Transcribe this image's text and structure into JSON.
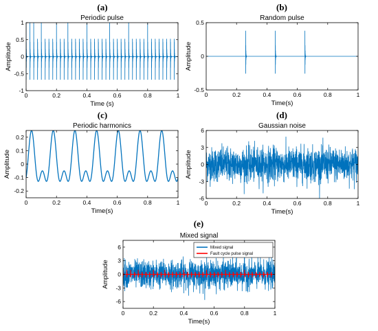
{
  "colors": {
    "signal": "#0072BD",
    "fault": "#FF0000",
    "axis": "#000000"
  },
  "chart_data": [
    {
      "id": "a",
      "panel_label": "(a)",
      "type": "line",
      "title": "Periodic pulse",
      "xlabel": "Time (s)",
      "ylabel": "Amplitude",
      "xlim": [
        0,
        1
      ],
      "ylim": [
        -1,
        1
      ],
      "xticks": [
        0,
        0.2,
        0.4,
        0.6,
        0.8,
        1
      ],
      "xtick_labels": [
        "0",
        "0.2",
        "0.4",
        "0.6",
        "0.8",
        "1"
      ],
      "yticks": [
        -1,
        -0.5,
        0,
        0.5,
        1
      ],
      "ytick_labels": [
        "-1",
        "-0.5",
        "0",
        "0.5",
        "1"
      ],
      "signal": {
        "kind": "periodic_pulse",
        "period_s": 0.025,
        "amplitude": 1
      }
    },
    {
      "id": "b",
      "panel_label": "(b)",
      "type": "line",
      "title": "Random pulse",
      "xlabel": "Time(s)",
      "ylabel": "Amplitude",
      "xlim": [
        0,
        1
      ],
      "ylim": [
        -0.5,
        0.5
      ],
      "xticks": [
        0,
        0.2,
        0.4,
        0.6,
        0.8,
        1
      ],
      "xtick_labels": [
        "0",
        "0.2",
        "0.4",
        "0.6",
        "0.8",
        "1"
      ],
      "yticks": [
        -0.5,
        0,
        0.5
      ],
      "ytick_labels": [
        "-0.5",
        "0",
        "0.5"
      ],
      "signal": {
        "kind": "random_pulse",
        "pulse_times_s": [
          0.26,
          0.455,
          0.65
        ],
        "amplitude": 0.38
      }
    },
    {
      "id": "c",
      "panel_label": "(c)",
      "type": "line",
      "title": "Periodic harmonics",
      "xlabel": "Time(s)",
      "ylabel": "Amplitude",
      "xlim": [
        0,
        1
      ],
      "ylim": [
        -0.25,
        0.25
      ],
      "xticks": [
        0,
        0.2,
        0.4,
        0.6,
        0.8,
        1
      ],
      "xtick_labels": [
        "0",
        "0.2",
        "0.4",
        "0.6",
        "0.8",
        "1"
      ],
      "yticks": [
        -0.2,
        -0.1,
        0,
        0.1,
        0.2
      ],
      "ytick_labels": [
        "-0.2",
        "-0.1",
        "0",
        "0.1",
        "0.2"
      ],
      "signal": {
        "kind": "harmonics",
        "fundamental_hz": 7,
        "amplitudes": [
          0.15,
          0.1
        ]
      }
    },
    {
      "id": "d",
      "panel_label": "(d)",
      "type": "line",
      "title": "Gaussian noise",
      "xlabel": "Time(s)",
      "ylabel": "Amplitude",
      "xlim": [
        0,
        1
      ],
      "ylim": [
        -6,
        6
      ],
      "xticks": [
        0,
        0.2,
        0.4,
        0.6,
        0.8,
        1
      ],
      "xtick_labels": [
        "0",
        "0.2",
        "0.4",
        "0.6",
        "0.8",
        "1"
      ],
      "yticks": [
        -6,
        -3,
        0,
        3,
        6
      ],
      "ytick_labels": [
        "-6",
        "-3",
        "0",
        "3",
        "6"
      ],
      "signal": {
        "kind": "gaussian_noise",
        "std": 1.5
      }
    },
    {
      "id": "e",
      "panel_label": "(e)",
      "type": "line",
      "title": "Mixed signal",
      "xlabel": "Time(s)",
      "ylabel": "Amplitude",
      "xlim": [
        0,
        1
      ],
      "ylim": [
        -7.5,
        7.5
      ],
      "xticks": [
        0,
        0.2,
        0.4,
        0.6,
        0.8,
        1
      ],
      "xtick_labels": [
        "0",
        "0.2",
        "0.4",
        "0.6",
        "0.8",
        "1"
      ],
      "yticks": [
        -6,
        -3,
        0,
        3,
        6
      ],
      "ytick_labels": [
        "-6",
        "-3",
        "0",
        "3",
        "6"
      ],
      "legend": {
        "placement": "top-right",
        "entries": [
          "Mixed signal",
          "Fault cycle pulse signal"
        ]
      },
      "series": [
        {
          "name": "Mixed signal",
          "kind": "mixed",
          "std": 1.5
        },
        {
          "name": "Fault cycle pulse signal",
          "kind": "periodic_pulse",
          "period_s": 0.025,
          "amplitude": 1
        }
      ]
    }
  ]
}
